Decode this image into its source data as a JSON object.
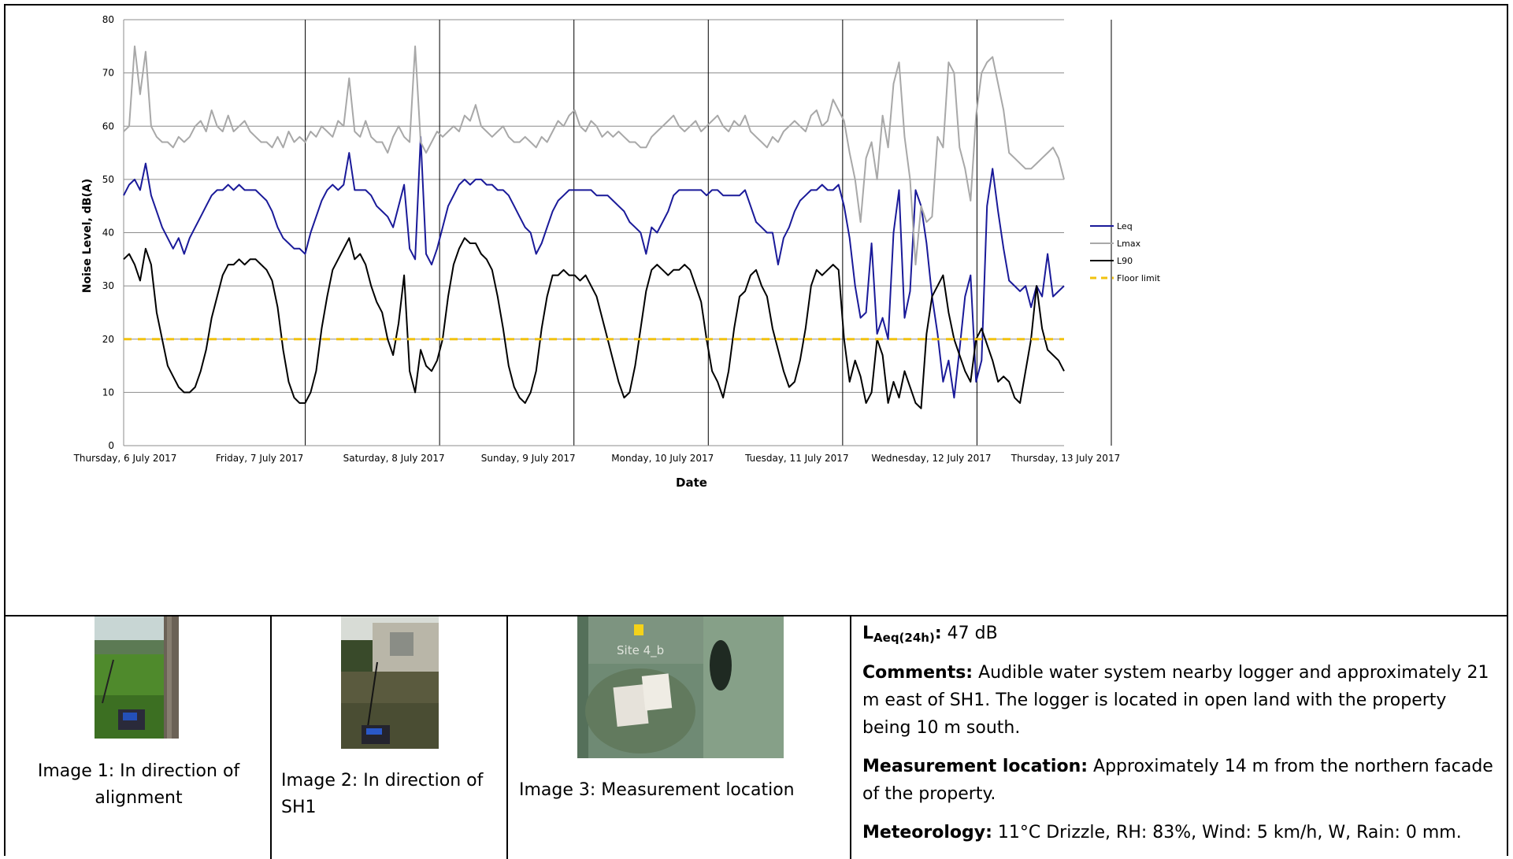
{
  "chart_data": {
    "type": "line",
    "title": "",
    "xlabel": "Date",
    "ylabel": "Noise Level, dB(A)",
    "ylim": [
      0,
      80
    ],
    "yticks": [
      0,
      10,
      20,
      30,
      40,
      50,
      60,
      70,
      80
    ],
    "xticks": [
      "Thursday, 6 July 2017",
      "Friday, 7 July 2017",
      "Saturday, 8 July 2017",
      "Sunday, 9 July 2017",
      "Monday, 10 July 2017",
      "Tuesday, 11 July 2017",
      "Wednesday, 12 July 2017",
      "Thursday, 13 July 2017"
    ],
    "x_hours_range": [
      0,
      171
    ],
    "grid": true,
    "legend_position": "right",
    "series": [
      {
        "name": "Leq",
        "color": "#1a1a99",
        "x_hours": [
          0,
          1,
          2,
          3,
          4,
          5,
          6,
          7,
          8,
          9,
          10,
          11,
          12,
          13,
          14,
          15,
          16,
          17,
          18,
          19,
          20,
          21,
          22,
          23,
          24,
          25,
          26,
          27,
          28,
          29,
          30,
          31,
          32,
          33,
          34,
          35,
          36,
          37,
          38,
          39,
          40,
          41,
          42,
          43,
          44,
          45,
          46,
          47,
          48,
          49,
          50,
          51,
          52,
          53,
          54,
          55,
          56,
          57,
          58,
          59,
          60,
          61,
          62,
          63,
          64,
          65,
          66,
          67,
          68,
          69,
          70,
          71,
          72,
          73,
          74,
          75,
          76,
          77,
          78,
          79,
          80,
          81,
          82,
          83,
          84,
          85,
          86,
          87,
          88,
          89,
          90,
          91,
          92,
          93,
          94,
          95,
          96,
          97,
          98,
          99,
          100,
          101,
          102,
          103,
          104,
          105,
          106,
          107,
          108,
          109,
          110,
          111,
          112,
          113,
          114,
          115,
          116,
          117,
          118,
          119,
          120,
          121,
          122,
          123,
          124,
          125,
          126,
          127,
          128,
          129,
          130,
          131,
          132,
          133,
          134,
          135,
          136,
          137,
          138,
          139,
          140,
          141,
          142,
          143,
          144,
          145,
          146,
          147,
          148,
          149,
          150,
          151,
          152,
          153,
          154,
          155,
          156,
          157,
          158,
          159,
          160,
          161,
          162,
          163,
          164,
          165,
          166,
          167,
          168,
          169,
          170,
          171
        ],
        "values": [
          47,
          49,
          50,
          48,
          53,
          47,
          44,
          41,
          39,
          37,
          39,
          36,
          39,
          41,
          43,
          45,
          47,
          48,
          48,
          49,
          48,
          49,
          48,
          48,
          48,
          47,
          46,
          44,
          41,
          39,
          38,
          37,
          37,
          36,
          40,
          43,
          46,
          48,
          49,
          48,
          49,
          55,
          48,
          48,
          48,
          47,
          45,
          44,
          43,
          41,
          45,
          49,
          37,
          35,
          58,
          36,
          34,
          37,
          41,
          45,
          47,
          49,
          50,
          49,
          50,
          50,
          49,
          49,
          48,
          48,
          47,
          45,
          43,
          41,
          40,
          36,
          38,
          41,
          44,
          46,
          47,
          48,
          48,
          48,
          48,
          48,
          47,
          47,
          47,
          46,
          45,
          44,
          42,
          41,
          40,
          36,
          41,
          40,
          42,
          44,
          47,
          48,
          48,
          48,
          48,
          48,
          47,
          48,
          48,
          47,
          47,
          47,
          47,
          48,
          45,
          42,
          41,
          40,
          40,
          34,
          39,
          41,
          44,
          46,
          47,
          48,
          48,
          49,
          48,
          48,
          49,
          45,
          39,
          30,
          24,
          25,
          38,
          21,
          24,
          20,
          40,
          48,
          24,
          29,
          48,
          45,
          38,
          28,
          21,
          12,
          16,
          9,
          18,
          28,
          32,
          12,
          16,
          45,
          52,
          44,
          37,
          31,
          30,
          29,
          30,
          26,
          30,
          28,
          36,
          28,
          29,
          30
        ]
      },
      {
        "name": "Lmax",
        "color": "#a8a8a8",
        "x_hours": [
          0,
          1,
          2,
          3,
          4,
          5,
          6,
          7,
          8,
          9,
          10,
          11,
          12,
          13,
          14,
          15,
          16,
          17,
          18,
          19,
          20,
          21,
          22,
          23,
          24,
          25,
          26,
          27,
          28,
          29,
          30,
          31,
          32,
          33,
          34,
          35,
          36,
          37,
          38,
          39,
          40,
          41,
          42,
          43,
          44,
          45,
          46,
          47,
          48,
          49,
          50,
          51,
          52,
          53,
          54,
          55,
          56,
          57,
          58,
          59,
          60,
          61,
          62,
          63,
          64,
          65,
          66,
          67,
          68,
          69,
          70,
          71,
          72,
          73,
          74,
          75,
          76,
          77,
          78,
          79,
          80,
          81,
          82,
          83,
          84,
          85,
          86,
          87,
          88,
          89,
          90,
          91,
          92,
          93,
          94,
          95,
          96,
          97,
          98,
          99,
          100,
          101,
          102,
          103,
          104,
          105,
          106,
          107,
          108,
          109,
          110,
          111,
          112,
          113,
          114,
          115,
          116,
          117,
          118,
          119,
          120,
          121,
          122,
          123,
          124,
          125,
          126,
          127,
          128,
          129,
          130,
          131,
          132,
          133,
          134,
          135,
          136,
          137,
          138,
          139,
          140,
          141,
          142,
          143,
          144,
          145,
          146,
          147,
          148,
          149,
          150,
          151,
          152,
          153,
          154,
          155,
          156,
          157,
          158,
          159,
          160,
          161,
          162,
          163,
          164,
          165,
          166,
          167,
          168,
          169,
          170,
          171
        ],
        "values": [
          59,
          60,
          75,
          66,
          74,
          60,
          58,
          57,
          57,
          56,
          58,
          57,
          58,
          60,
          61,
          59,
          63,
          60,
          59,
          62,
          59,
          60,
          61,
          59,
          58,
          57,
          57,
          56,
          58,
          56,
          59,
          57,
          58,
          57,
          59,
          58,
          60,
          59,
          58,
          61,
          60,
          69,
          59,
          58,
          61,
          58,
          57,
          57,
          55,
          58,
          60,
          58,
          57,
          75,
          57,
          55,
          57,
          59,
          58,
          59,
          60,
          59,
          62,
          61,
          64,
          60,
          59,
          58,
          59,
          60,
          58,
          57,
          57,
          58,
          57,
          56,
          58,
          57,
          59,
          61,
          60,
          62,
          63,
          60,
          59,
          61,
          60,
          58,
          59,
          58,
          59,
          58,
          57,
          57,
          56,
          56,
          58,
          59,
          60,
          61,
          62,
          60,
          59,
          60,
          61,
          59,
          60,
          61,
          62,
          60,
          59,
          61,
          60,
          62,
          59,
          58,
          57,
          56,
          58,
          57,
          59,
          60,
          61,
          60,
          59,
          62,
          63,
          60,
          61,
          65,
          63,
          61,
          55,
          50,
          42,
          54,
          57,
          50,
          62,
          56,
          68,
          72,
          58,
          50,
          34,
          45,
          42,
          43,
          58,
          56,
          72,
          70,
          56,
          52,
          46,
          62,
          70,
          72,
          73,
          68,
          63,
          55,
          54,
          53,
          52,
          52,
          53,
          54,
          55,
          56,
          54,
          50
        ]
      },
      {
        "name": "L90",
        "color": "#000000",
        "x_hours": [
          0,
          1,
          2,
          3,
          4,
          5,
          6,
          7,
          8,
          9,
          10,
          11,
          12,
          13,
          14,
          15,
          16,
          17,
          18,
          19,
          20,
          21,
          22,
          23,
          24,
          25,
          26,
          27,
          28,
          29,
          30,
          31,
          32,
          33,
          34,
          35,
          36,
          37,
          38,
          39,
          40,
          41,
          42,
          43,
          44,
          45,
          46,
          47,
          48,
          49,
          50,
          51,
          52,
          53,
          54,
          55,
          56,
          57,
          58,
          59,
          60,
          61,
          62,
          63,
          64,
          65,
          66,
          67,
          68,
          69,
          70,
          71,
          72,
          73,
          74,
          75,
          76,
          77,
          78,
          79,
          80,
          81,
          82,
          83,
          84,
          85,
          86,
          87,
          88,
          89,
          90,
          91,
          92,
          93,
          94,
          95,
          96,
          97,
          98,
          99,
          100,
          101,
          102,
          103,
          104,
          105,
          106,
          107,
          108,
          109,
          110,
          111,
          112,
          113,
          114,
          115,
          116,
          117,
          118,
          119,
          120,
          121,
          122,
          123,
          124,
          125,
          126,
          127,
          128,
          129,
          130,
          131,
          132,
          133,
          134,
          135,
          136,
          137,
          138,
          139,
          140,
          141,
          142,
          143,
          144,
          145,
          146,
          147,
          148,
          149,
          150,
          151,
          152,
          153,
          154,
          155,
          156,
          157,
          158,
          159,
          160,
          161,
          162,
          163,
          164,
          165,
          166,
          167,
          168,
          169,
          170,
          171
        ],
        "values": [
          35,
          36,
          34,
          31,
          37,
          34,
          25,
          20,
          15,
          13,
          11,
          10,
          10,
          11,
          14,
          18,
          24,
          28,
          32,
          34,
          34,
          35,
          34,
          35,
          35,
          34,
          33,
          31,
          26,
          18,
          12,
          9,
          8,
          8,
          10,
          14,
          22,
          28,
          33,
          35,
          37,
          39,
          35,
          36,
          34,
          30,
          27,
          25,
          20,
          17,
          23,
          32,
          14,
          10,
          18,
          15,
          14,
          16,
          20,
          28,
          34,
          37,
          39,
          38,
          38,
          36,
          35,
          33,
          28,
          22,
          15,
          11,
          9,
          8,
          10,
          14,
          22,
          28,
          32,
          32,
          33,
          32,
          32,
          31,
          32,
          30,
          28,
          24,
          20,
          16,
          12,
          9,
          10,
          15,
          22,
          29,
          33,
          34,
          33,
          32,
          33,
          33,
          34,
          33,
          30,
          27,
          20,
          14,
          12,
          9,
          14,
          22,
          28,
          29,
          32,
          33,
          30,
          28,
          22,
          18,
          14,
          11,
          12,
          16,
          22,
          30,
          33,
          32,
          33,
          34,
          33,
          20,
          12,
          16,
          13,
          8,
          10,
          20,
          17,
          8,
          12,
          9,
          14,
          11,
          8,
          7,
          21,
          28,
          30,
          32,
          25,
          20,
          17,
          14,
          12,
          20,
          22,
          19,
          16,
          12,
          13,
          12,
          9,
          8,
          14,
          20,
          30,
          22,
          18,
          17,
          16,
          14
        ]
      },
      {
        "name": "Floor limit",
        "color": "#f2c20e",
        "dashed": true,
        "constant": 20
      }
    ]
  },
  "photos": [
    {
      "caption": "Image 1: In direction of alignment"
    },
    {
      "caption": "Image 2: In direction of SH1"
    },
    {
      "caption": "Image 3: Measurement location",
      "map_label": "Site 4_b"
    }
  ],
  "info": {
    "laeq_label": "L",
    "laeq_sub": "Aeq(24h)",
    "laeq_sep": ":",
    "laeq_value": " 47 dB",
    "comments_label": "Comments:",
    "comments_text": " Audible water system nearby logger and approximately 21 m east of SH1. The logger is located in open land with the property being 10 m south.",
    "measurement_label": "Measurement location:",
    "measurement_text": " Approximately 14 m from the northern facade of the property.",
    "meteorology_label": "Meteorology:",
    "meteorology_text": " 11°C Drizzle, RH: 83%, Wind: 5 km/h, W, Rain: 0 mm."
  }
}
